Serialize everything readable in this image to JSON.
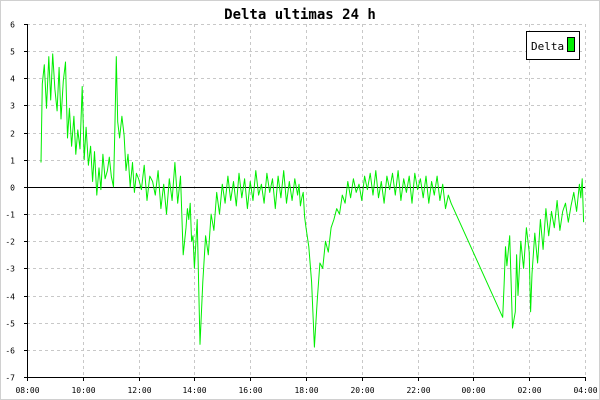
{
  "colors": {
    "series": "#00ee00",
    "grid": "#c8c8c8",
    "axis": "#000000"
  },
  "chart_data": {
    "type": "line",
    "title": "Delta ultimas 24 h",
    "xlabel": "",
    "ylabel": "",
    "grid": true,
    "legend_position": "top-right",
    "xlim": [
      8.0,
      28.0
    ],
    "ylim": [
      -7,
      6
    ],
    "x_ticks": [
      {
        "value": 8,
        "label": "08:00"
      },
      {
        "value": 10,
        "label": "10:00"
      },
      {
        "value": 12,
        "label": "12:00"
      },
      {
        "value": 14,
        "label": "14:00"
      },
      {
        "value": 16,
        "label": "16:00"
      },
      {
        "value": 18,
        "label": "18:00"
      },
      {
        "value": 20,
        "label": "20:00"
      },
      {
        "value": 22,
        "label": "22:00"
      },
      {
        "value": 24,
        "label": "00:00"
      },
      {
        "value": 26,
        "label": "02:00"
      },
      {
        "value": 28,
        "label": "04:00"
      }
    ],
    "y_ticks": [
      6,
      5,
      4,
      3,
      2,
      1,
      0,
      -1,
      -2,
      -3,
      -4,
      -5,
      -6,
      -7
    ],
    "series": [
      {
        "name": "Delta",
        "x": [
          8.5,
          8.55,
          8.62,
          8.7,
          8.78,
          8.85,
          8.92,
          9.0,
          9.08,
          9.15,
          9.22,
          9.3,
          9.38,
          9.45,
          9.52,
          9.6,
          9.68,
          9.75,
          9.82,
          9.9,
          9.98,
          10.05,
          10.12,
          10.2,
          10.28,
          10.35,
          10.42,
          10.5,
          10.58,
          10.65,
          10.72,
          10.8,
          10.88,
          10.95,
          11.02,
          11.1,
          11.15,
          11.2,
          11.25,
          11.32,
          11.4,
          11.48,
          11.55,
          11.62,
          11.7,
          11.78,
          11.85,
          11.92,
          12.0,
          12.1,
          12.2,
          12.3,
          12.4,
          12.5,
          12.6,
          12.7,
          12.8,
          12.9,
          13.0,
          13.1,
          13.2,
          13.3,
          13.4,
          13.5,
          13.6,
          13.7,
          13.75,
          13.8,
          13.85,
          13.9,
          13.95,
          14.0,
          14.1,
          14.2,
          14.3,
          14.4,
          14.5,
          14.6,
          14.7,
          14.8,
          14.9,
          15.0,
          15.1,
          15.2,
          15.3,
          15.4,
          15.5,
          15.6,
          15.7,
          15.8,
          15.9,
          16.0,
          16.1,
          16.2,
          16.3,
          16.4,
          16.5,
          16.6,
          16.7,
          16.8,
          16.9,
          17.0,
          17.1,
          17.2,
          17.3,
          17.4,
          17.5,
          17.6,
          17.7,
          17.75,
          17.8,
          17.85,
          17.9,
          17.95,
          18.0,
          18.1,
          18.2,
          18.3,
          18.4,
          18.5,
          18.6,
          18.7,
          18.8,
          18.9,
          19.0,
          19.1,
          19.2,
          19.3,
          19.4,
          19.5,
          19.6,
          19.7,
          19.8,
          19.9,
          20.0,
          20.1,
          20.2,
          20.3,
          20.4,
          20.5,
          20.6,
          20.7,
          20.8,
          20.9,
          21.0,
          21.1,
          21.2,
          21.3,
          21.4,
          21.5,
          21.6,
          21.7,
          21.8,
          21.9,
          22.0,
          22.1,
          22.2,
          22.3,
          22.4,
          22.5,
          22.6,
          22.7,
          22.8,
          22.9,
          23.0,
          23.1,
          23.2,
          25.05,
          25.1,
          25.15,
          25.2,
          25.3,
          25.4,
          25.5,
          25.55,
          25.6,
          25.7,
          25.8,
          25.9,
          26.0,
          26.05,
          26.1,
          26.2,
          26.3,
          26.4,
          26.5,
          26.6,
          26.7,
          26.8,
          26.9,
          27.0,
          27.1,
          27.2,
          27.3,
          27.4,
          27.5,
          27.6,
          27.7,
          27.8,
          27.85,
          27.9,
          27.95
        ],
        "y": [
          0.9,
          3.8,
          4.5,
          2.9,
          4.8,
          3.2,
          4.9,
          3.6,
          2.8,
          4.4,
          2.5,
          3.9,
          4.6,
          1.8,
          2.9,
          1.5,
          2.6,
          1.2,
          2.1,
          1.4,
          3.7,
          1.0,
          2.2,
          0.8,
          1.5,
          0.2,
          1.3,
          -0.3,
          0.7,
          -0.1,
          1.2,
          0.3,
          0.6,
          1.1,
          0.4,
          0.0,
          2.2,
          4.8,
          2.4,
          1.8,
          2.6,
          1.9,
          0.6,
          1.2,
          0.0,
          0.9,
          -0.2,
          0.5,
          0.3,
          -0.1,
          0.8,
          -0.5,
          0.4,
          0.2,
          -0.3,
          0.6,
          -0.8,
          0.1,
          -1.0,
          0.3,
          -0.5,
          0.9,
          -0.6,
          0.4,
          -2.5,
          -1.5,
          -0.8,
          -1.2,
          -0.6,
          -2.0,
          -1.8,
          -3.0,
          -1.2,
          -5.8,
          -3.5,
          -1.8,
          -2.5,
          -1.0,
          -1.6,
          -0.2,
          -1.0,
          0.1,
          -0.6,
          0.4,
          -0.5,
          0.2,
          -0.7,
          0.5,
          -0.4,
          0.3,
          -0.8,
          0.2,
          -0.5,
          0.6,
          -0.3,
          0.1,
          -0.6,
          0.5,
          -0.2,
          0.3,
          -0.8,
          0.4,
          -0.4,
          0.6,
          -0.6,
          0.2,
          -0.5,
          0.3,
          -0.3,
          0.1,
          -0.7,
          -0.4,
          -0.2,
          -1.1,
          -1.5,
          -2.2,
          -3.5,
          -5.9,
          -4.2,
          -2.8,
          -3.0,
          -2.0,
          -2.4,
          -1.5,
          -1.2,
          -0.8,
          -1.0,
          -0.3,
          -0.6,
          0.2,
          -0.4,
          0.3,
          -0.2,
          0.1,
          -0.5,
          0.4,
          -0.1,
          0.5,
          -0.3,
          0.6,
          -0.4,
          0.2,
          -0.6,
          0.4,
          -0.1,
          0.5,
          -0.3,
          0.6,
          -0.5,
          0.3,
          -0.2,
          0.4,
          -0.6,
          0.5,
          -0.1,
          0.3,
          -0.4,
          0.4,
          -0.6,
          0.2,
          -0.3,
          0.4,
          -0.5,
          0.1,
          -0.8,
          -0.3,
          -0.6,
          -4.8,
          -3.6,
          -2.2,
          -2.9,
          -1.8,
          -5.2,
          -4.6,
          -2.5,
          -4.0,
          -2.0,
          -3.0,
          -1.5,
          -2.4,
          -4.6,
          -3.2,
          -1.7,
          -2.8,
          -1.2,
          -2.3,
          -0.8,
          -1.8,
          -0.9,
          -1.5,
          -0.5,
          -1.6,
          -0.9,
          -0.6,
          -1.3,
          -0.7,
          -0.2,
          -0.9,
          0.1,
          -0.4,
          0.3,
          -1.3
        ]
      }
    ]
  }
}
